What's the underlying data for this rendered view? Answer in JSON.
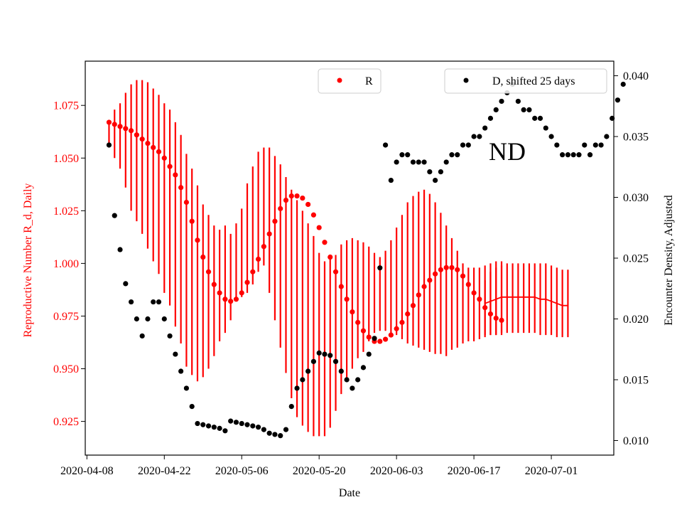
{
  "chart_data": {
    "type": "scatter",
    "annotation": "ND",
    "xlabel": "Date",
    "ylabel_left": "Reproductive Number R_d, Daily",
    "ylabel_right": "Encounter Density, Adjusted",
    "x_tick_labels": [
      "2020-04-08",
      "2020-04-22",
      "2020-05-06",
      "2020-05-20",
      "2020-06-03",
      "2020-06-17",
      "2020-07-01"
    ],
    "x_tick_days": [
      0,
      14,
      28,
      42,
      56,
      70,
      84
    ],
    "xlim_days": [
      -0.3,
      95.3
    ],
    "left_ticks": [
      "0.925",
      "0.950",
      "0.975",
      "1.000",
      "1.025",
      "1.050",
      "1.075"
    ],
    "left_tick_values": [
      0.925,
      0.95,
      0.975,
      1.0,
      1.025,
      1.05,
      1.075
    ],
    "ylim_left": [
      0.909,
      1.096
    ],
    "right_ticks": [
      "0.010",
      "0.015",
      "0.020",
      "0.025",
      "0.030",
      "0.035",
      "0.040"
    ],
    "right_tick_values": [
      0.01,
      0.015,
      0.02,
      0.025,
      0.03,
      0.035,
      0.04
    ],
    "ylim_right": [
      0.0088,
      0.0412
    ],
    "colors": {
      "r_series": "#ff0000",
      "d_series": "#000000",
      "axis": "#000000"
    },
    "legend": [
      {
        "name": "R",
        "color": "#ff0000",
        "placement": "top-center"
      },
      {
        "name": "D, shifted 25 days",
        "color": "#000000",
        "placement": "top-right"
      }
    ],
    "series": [
      {
        "name": "R",
        "axis": "left",
        "start_day": 4,
        "values": [
          1.067,
          1.066,
          1.065,
          1.064,
          1.063,
          1.061,
          1.059,
          1.057,
          1.055,
          1.053,
          1.05,
          1.046,
          1.042,
          1.036,
          1.029,
          1.02,
          1.011,
          1.003,
          0.996,
          0.99,
          0.986,
          0.983,
          0.982,
          0.983,
          0.986,
          0.991,
          0.996,
          1.002,
          1.008,
          1.014,
          1.02,
          1.026,
          1.03,
          1.032,
          1.032,
          1.031,
          1.028,
          1.023,
          1.017,
          1.01,
          1.003,
          0.996,
          0.989,
          0.983,
          0.977,
          0.972,
          0.968,
          0.965,
          0.963,
          0.963,
          0.964,
          0.966,
          0.969,
          0.972,
          0.976,
          0.98,
          0.985,
          0.989,
          0.992,
          0.995,
          0.997,
          0.998,
          0.998,
          0.997,
          0.994,
          0.99,
          0.986,
          0.983,
          0.979,
          0.976,
          0.974,
          0.973
        ],
        "lower": [
          1.055,
          1.05,
          1.045,
          1.036,
          1.025,
          1.02,
          1.014,
          1.007,
          1.001,
          0.995,
          0.986,
          0.98,
          0.97,
          0.962,
          0.951,
          0.947,
          0.944,
          0.946,
          0.95,
          0.956,
          0.963,
          0.967,
          0.973,
          0.982,
          0.984,
          0.986,
          0.99,
          0.996,
          0.999,
          0.986,
          0.973,
          0.96,
          0.948,
          0.936,
          0.927,
          0.923,
          0.92,
          0.918,
          0.918,
          0.918,
          0.922,
          0.93,
          0.938,
          0.945,
          0.95,
          0.955,
          0.958,
          0.963,
          0.967,
          0.968,
          0.968,
          0.967,
          0.966,
          0.964,
          0.962,
          0.961,
          0.96,
          0.959,
          0.958,
          0.957,
          0.957,
          0.956,
          0.959,
          0.96,
          0.962,
          0.963,
          0.963,
          0.964,
          0.965,
          0.966,
          0.966,
          0.967
        ],
        "upper": [
          1.067,
          1.073,
          1.076,
          1.081,
          1.085,
          1.087,
          1.087,
          1.086,
          1.083,
          1.08,
          1.076,
          1.073,
          1.067,
          1.061,
          1.052,
          1.045,
          1.037,
          1.028,
          1.023,
          1.018,
          1.016,
          1.018,
          1.014,
          1.019,
          1.026,
          1.038,
          1.046,
          1.053,
          1.055,
          1.055,
          1.051,
          1.047,
          1.041,
          1.035,
          1.03,
          1.025,
          1.019,
          1.013,
          1.005,
          1.001,
          1.002,
          1.004,
          1.009,
          1.011,
          1.012,
          1.011,
          1.01,
          1.008,
          1.005,
          1.003,
          1.006,
          1.011,
          1.017,
          1.023,
          1.029,
          1.032,
          1.034,
          1.035,
          1.033,
          1.029,
          1.024,
          1.018,
          1.012,
          1.006,
          1.0,
          0.998,
          0.998,
          0.998,
          0.999,
          1.0,
          1.001,
          1.001
        ]
      },
      {
        "name": "R_bands",
        "axis": "left",
        "start_day": 72,
        "values": [
          0.981,
          0.982,
          0.983,
          0.984,
          0.984,
          0.984,
          0.984,
          0.984,
          0.984,
          0.984,
          0.983,
          0.983,
          0.982,
          0.981,
          0.98,
          0.98
        ],
        "lower": [
          0.966,
          0.966,
          0.966,
          0.966,
          0.967,
          0.967,
          0.967,
          0.967,
          0.967,
          0.967,
          0.966,
          0.966,
          0.966,
          0.965,
          0.965,
          0.965
        ],
        "upper": [
          0.992,
          0.996,
          0.998,
          0.999,
          1.0,
          1.0,
          1.0,
          1.0,
          1.0,
          1.0,
          1.0,
          1.0,
          0.999,
          0.998,
          0.997,
          0.997
        ]
      },
      {
        "name": "D, shifted 25 days",
        "axis": "right",
        "start_day": 4,
        "values": [
          0.0343,
          0.0285,
          0.0257,
          0.0229,
          0.0214,
          0.02,
          0.0186,
          0.02,
          0.0214,
          0.0214,
          0.02,
          0.0186,
          0.0171,
          0.0157,
          0.0143,
          0.0128,
          0.0114,
          0.0113,
          0.0112,
          0.0111,
          0.011,
          0.0108,
          0.0116,
          0.0115,
          0.0114,
          0.0113,
          0.0112,
          0.0111,
          0.0109,
          0.0106,
          0.0105,
          0.0104,
          0.0109,
          0.0128,
          0.0143,
          0.015,
          0.0157,
          0.0165,
          0.0172,
          0.0171,
          0.017,
          0.0165,
          0.0157,
          0.015,
          0.0143,
          0.015,
          0.016,
          0.0171,
          0.0184,
          0.0242,
          0.0343,
          0.0314,
          0.0329,
          0.0335,
          0.0335,
          0.0329,
          0.0329,
          0.0329,
          0.0321,
          0.0314,
          0.0321,
          0.0329,
          0.0335,
          0.0335,
          0.0343,
          0.0343,
          0.035,
          0.035,
          0.0357,
          0.0365,
          0.0372,
          0.0379,
          0.0386,
          0.0393,
          0.0379,
          0.0372,
          0.0372,
          0.0365,
          0.0365,
          0.0357,
          0.035,
          0.0343,
          0.0335,
          0.0335,
          0.0335,
          0.0335,
          0.0343,
          0.0335,
          0.0343,
          0.0343,
          0.035,
          0.0365,
          0.038,
          0.0393
        ]
      }
    ]
  }
}
